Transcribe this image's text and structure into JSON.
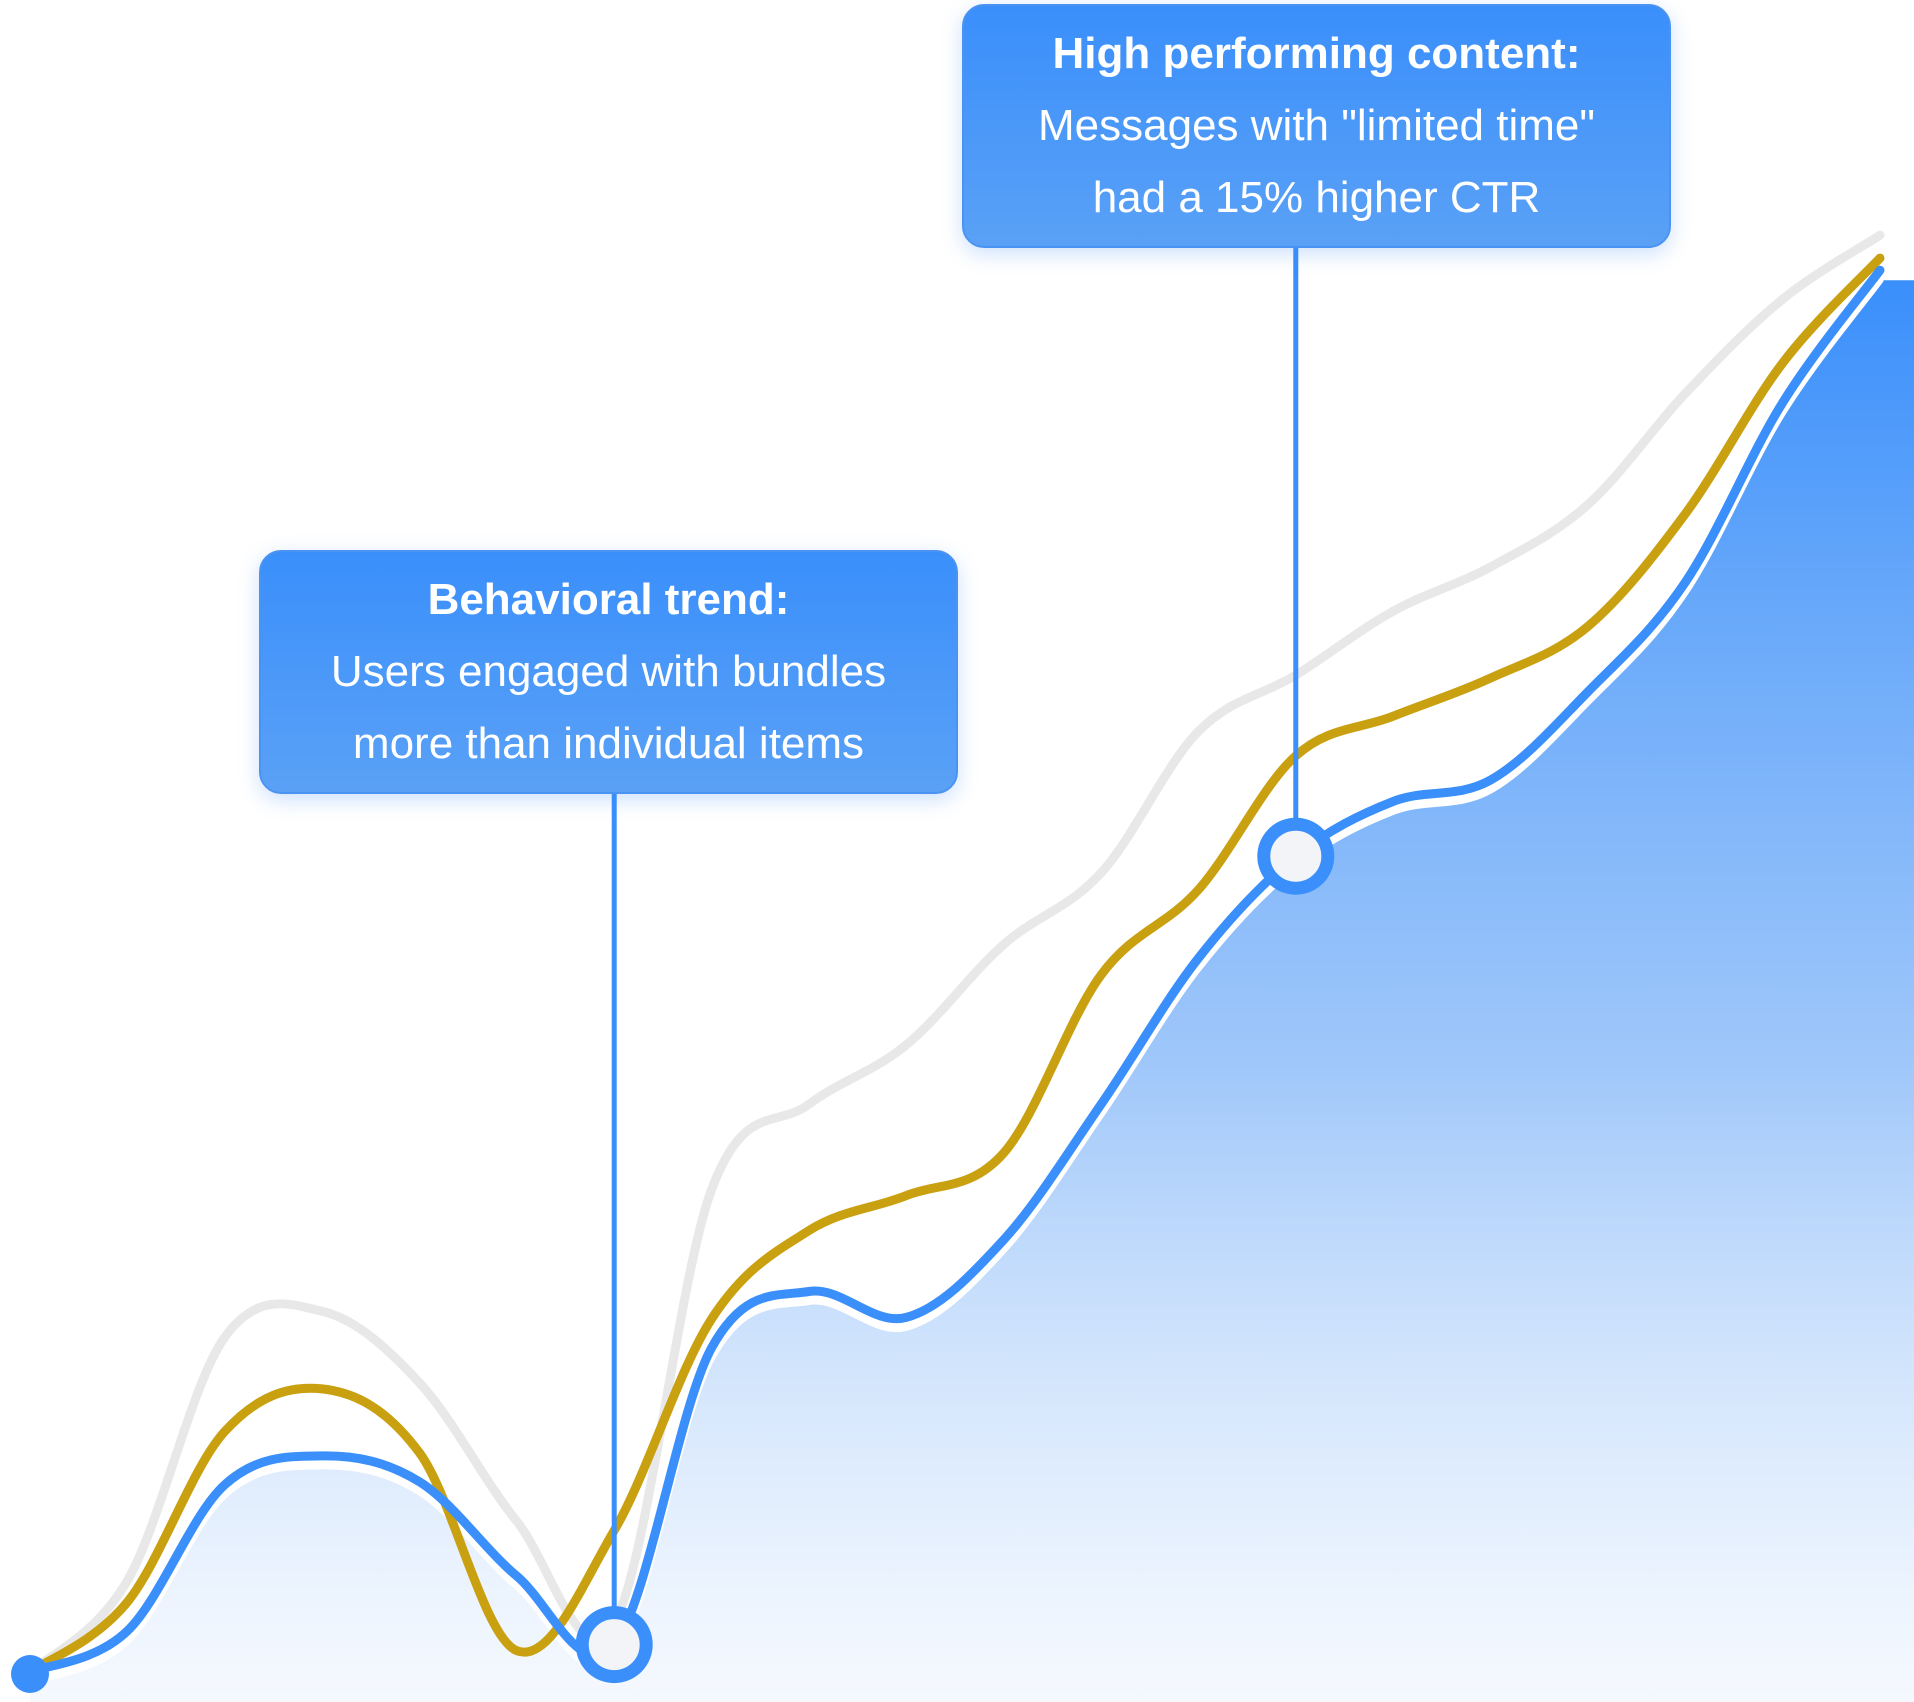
{
  "colors": {
    "primary": "#3a8ffb",
    "gold": "#c9a010",
    "gray": "#e8e8e8",
    "marker_fill": "#f3f4f8"
  },
  "chart_data": {
    "type": "area",
    "title": "",
    "xlabel": "",
    "ylabel": "",
    "grid": false,
    "legend": "none",
    "x": [
      0,
      1,
      2,
      3,
      4,
      5,
      6,
      7,
      8,
      9,
      10,
      11,
      12,
      13,
      14,
      15,
      16,
      17,
      18,
      19
    ],
    "ylim": [
      0,
      100
    ],
    "series": [
      {
        "color": "#e8e8e8",
        "values": [
          0,
          6,
          22,
          23.7,
          19,
          9.9,
          3.2,
          31.7,
          37.3,
          41.2,
          47.8,
          52.5,
          61.8,
          65.5,
          69.7,
          72.6,
          76.7,
          84,
          90.2,
          94.4
        ]
      },
      {
        "color": "#c9a010",
        "values": [
          0,
          4.6,
          15.8,
          18.6,
          14.4,
          1.4,
          9.3,
          23.2,
          29,
          31.3,
          34.1,
          45.8,
          51.4,
          60.2,
          62.8,
          65.3,
          68.7,
          76.1,
          86,
          92.9
        ]
      },
      {
        "color": "#3a8ffb",
        "fill": true,
        "values": [
          0,
          2.7,
          12.3,
          14.2,
          12.5,
          6.3,
          1.8,
          21.3,
          25,
          23.3,
          28.4,
          37.3,
          46.9,
          53.6,
          57.2,
          58.6,
          64.4,
          71.6,
          83.4,
          92.1
        ]
      }
    ],
    "annotations": [
      {
        "x": 6,
        "series": 2,
        "title": "Behavioral trend:",
        "lines": [
          "Users engaged with bundles",
          "more than individual items"
        ]
      },
      {
        "x": 13,
        "series": 2,
        "title": "High performing content:",
        "lines": [
          "Messages with \"limited time\"",
          "had a 15% higher CTR"
        ]
      }
    ]
  }
}
